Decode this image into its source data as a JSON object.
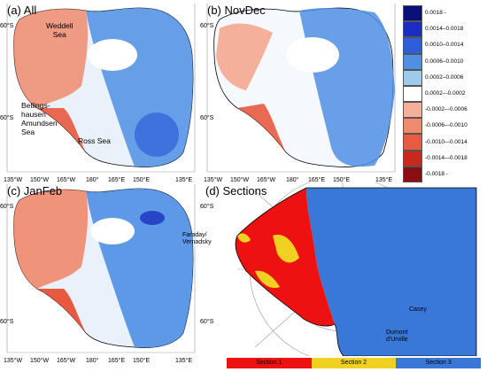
{
  "panels": [
    {
      "id": "a",
      "title": "(a) All",
      "lon_labels": [
        "135°W",
        "150°W",
        "165°W",
        "180°",
        "165°E",
        "150°E",
        "135°E"
      ],
      "lat_labels": [
        "60°S",
        "60°S"
      ]
    },
    {
      "id": "b",
      "title": "(b) NovDec",
      "lon_labels": [
        "135°W",
        "150°W",
        "165°W",
        "180°",
        "165°E",
        "150°E",
        "135°E"
      ],
      "lat_labels": [
        "60°S",
        "60°S"
      ]
    },
    {
      "id": "c",
      "title": "(c) JanFeb",
      "lon_labels": [
        "135°W",
        "150°W",
        "165°W",
        "180°",
        "165°E",
        "150°E",
        "135°E"
      ],
      "lat_labels": [
        "60°S",
        "60°S"
      ]
    },
    {
      "id": "d",
      "title": "(d) Sections",
      "lat_labels": [
        "60°S",
        "60°S"
      ]
    }
  ],
  "places": {
    "weddell": "Weddell\nSea",
    "bellingshausen": "Bellings-\nhausen\nAmundsen\nSea",
    "ross": "Ross Sea",
    "faraday": "Faraday/\nVernadsky",
    "casey": "Casey",
    "dumont": "Dumont\nd'Urville"
  },
  "colorbar": {
    "labels": [
      "0.0018 -",
      "0.0014–0.0018",
      "0.0010–0.0014",
      "0.0006–0.0010",
      "0.0002–0.0006",
      "0.0002–-0.0002",
      "-0.0002–-0.0006",
      "-0.0006–-0.0010",
      "-0.0010–-0.0014",
      "-0.0014–-0.0018",
      "-0.0018 -"
    ],
    "colors": [
      "#0a0f7a",
      "#1a2fc0",
      "#2f5fd8",
      "#4f8fe4",
      "#9fcbea",
      "#ffffff",
      "#f4b09a",
      "#ef8a6c",
      "#e85a42",
      "#c8281e",
      "#8a0f14"
    ]
  },
  "sections": {
    "labels": [
      "Section 1",
      "Section 2",
      "Section 3"
    ],
    "colors": [
      "#ee1111",
      "#f0d020",
      "#3a78d8"
    ]
  }
}
